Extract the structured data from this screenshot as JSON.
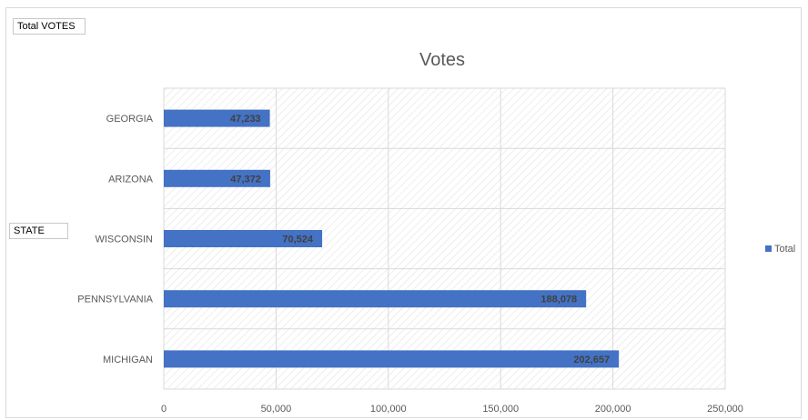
{
  "pivot_fields": {
    "values_field": "Total VOTES",
    "axis_field": "STATE"
  },
  "chart_data": {
    "type": "bar",
    "orientation": "horizontal",
    "title": "Votes",
    "categories": [
      "GEORGIA",
      "ARIZONA",
      "WISCONSIN",
      "PENNSYLVANIA",
      "MICHIGAN"
    ],
    "series": [
      {
        "name": "Total",
        "values": [
          47233,
          47372,
          70524,
          188078,
          202657
        ],
        "data_labels": [
          "47,233",
          "47,372",
          "70,524",
          "188,078",
          "202,657"
        ],
        "color": "#4472c4"
      }
    ],
    "x_ticks": [
      0,
      50000,
      100000,
      150000,
      200000,
      250000
    ],
    "x_tick_labels": [
      "0",
      "50,000",
      "100,000",
      "150,000",
      "200,000",
      "250,000"
    ],
    "xlim": [
      0,
      250000
    ],
    "grid": true,
    "legend_position": "right",
    "colors": {
      "bar": "#4472c4",
      "grid": "#d9d9d9",
      "hatch": "#e4e4e4",
      "title": "#595959",
      "axis_text": "#595959",
      "data_label": "#404040"
    }
  }
}
